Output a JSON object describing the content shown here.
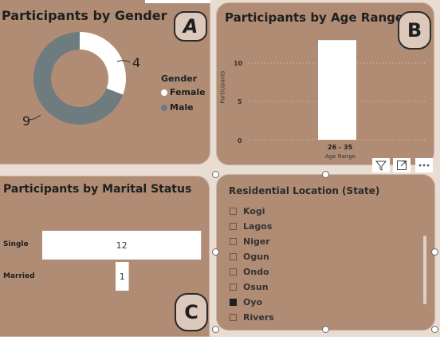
{
  "gender_panel": {
    "title": "Participants by Gender",
    "badge": "A",
    "legend_title": "Gender",
    "female_label": "Female",
    "male_label": "Male",
    "female_value_label": "4",
    "male_value_label": "9"
  },
  "age_panel": {
    "title": "Participants by Age Range",
    "badge": "B",
    "y_axis_label": "Participants",
    "x_axis_label": "Age Range",
    "category_label": "26 - 35",
    "tick_10": "10",
    "tick_5": "5",
    "tick_0": "0"
  },
  "marital_panel": {
    "title": "Participants by Marital Status",
    "badge": "C",
    "single_label": "Single",
    "married_label": "Married",
    "single_value": "12",
    "married_value": "1"
  },
  "location_panel": {
    "title": "Residential Location (State)",
    "items": [
      {
        "label": "Kogi",
        "checked": false
      },
      {
        "label": "Lagos",
        "checked": false
      },
      {
        "label": "Niger",
        "checked": false
      },
      {
        "label": "Ogun",
        "checked": false
      },
      {
        "label": "Ondo",
        "checked": false
      },
      {
        "label": "Osun",
        "checked": false
      },
      {
        "label": "Oyo",
        "checked": true
      },
      {
        "label": "Rivers",
        "checked": false
      }
    ]
  },
  "toolbar": {
    "filter_icon": "filter-icon",
    "focus_icon": "focus-mode-icon",
    "more_icon": "more-options-icon"
  },
  "colors": {
    "panel_bg": "#b08c74",
    "female": "#ffffff",
    "male": "#6e7b7f",
    "bar": "#ffffff"
  },
  "chart_data": [
    {
      "type": "pie",
      "title": "Participants by Gender",
      "categories": [
        "Female",
        "Male"
      ],
      "values": [
        4,
        9
      ],
      "legend_title": "Gender",
      "legend_position": "right"
    },
    {
      "type": "bar",
      "title": "Participants by Age Range",
      "categories": [
        "26 - 35"
      ],
      "values": [
        13
      ],
      "xlabel": "Age Range",
      "ylabel": "Participants",
      "ylim": [
        0,
        13
      ],
      "yticks": [
        0,
        5,
        10
      ],
      "grid": true
    },
    {
      "type": "bar",
      "orientation": "horizontal",
      "title": "Participants by Marital Status",
      "categories": [
        "Single",
        "Married"
      ],
      "values": [
        12,
        1
      ]
    }
  ]
}
